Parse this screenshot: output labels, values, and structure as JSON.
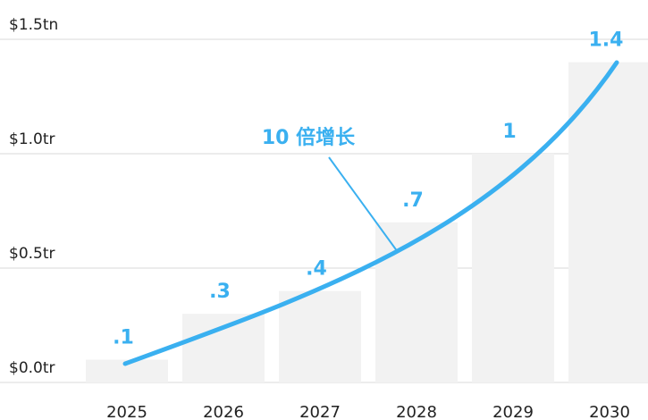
{
  "chart_data": {
    "type": "bar",
    "categories": [
      "2025",
      "2026",
      "2027",
      "2028",
      "2029",
      "2030"
    ],
    "values": [
      0.1,
      0.3,
      0.4,
      0.7,
      1,
      1.4
    ],
    "value_labels": [
      ".1",
      ".3",
      ".4",
      ".7",
      "1",
      "1.4"
    ],
    "color": "#f2f2f2",
    "ylim": [
      0,
      1.5
    ],
    "yticks": [
      {
        "value": 0,
        "label": "$0.0tr"
      },
      {
        "value": 0.5,
        "label": "$0.5tr"
      },
      {
        "value": 1.0,
        "label": "$1.0tr"
      },
      {
        "value": 1.5,
        "label": "$1.5tn"
      }
    ],
    "grid": true,
    "annotation": "10 倍增长"
  }
}
